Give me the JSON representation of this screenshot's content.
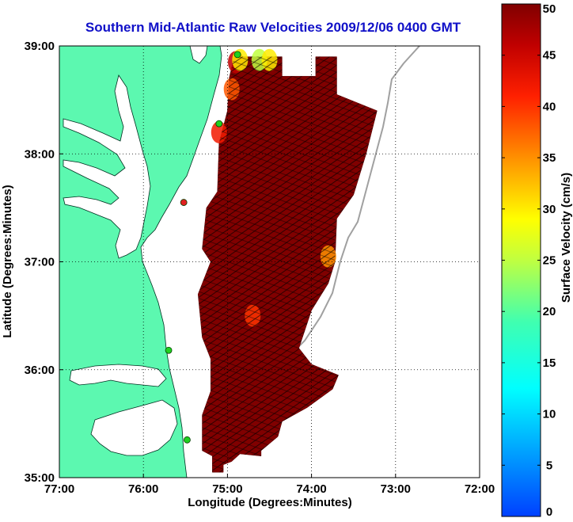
{
  "chart_data": {
    "type": "heatmap",
    "title": "Southern Mid-Atlantic Raw Velocities 2009/12/06 0400 GMT",
    "xlabel": "Longitude (Degrees:Minutes)",
    "ylabel": "Latitude (Degrees:Minutes)",
    "x_ticks": [
      {
        "value": -77,
        "label": "77:00"
      },
      {
        "value": -76,
        "label": "76:00"
      },
      {
        "value": -75,
        "label": "75:00"
      },
      {
        "value": -74,
        "label": "74:00"
      },
      {
        "value": -73,
        "label": "73:00"
      },
      {
        "value": -72,
        "label": "72:00"
      }
    ],
    "y_ticks": [
      {
        "value": 35,
        "label": "35:00"
      },
      {
        "value": 36,
        "label": "36:00"
      },
      {
        "value": 37,
        "label": "37:00"
      },
      {
        "value": 38,
        "label": "38:00"
      },
      {
        "value": 39,
        "label": "39:00"
      }
    ],
    "xlim": [
      -77,
      -72
    ],
    "ylim": [
      35,
      39
    ],
    "grid": true,
    "colorbar": {
      "label": "Surface Velocity (cm/s)",
      "range": [
        0,
        50
      ],
      "ticks": [
        0,
        5,
        10,
        15,
        20,
        25,
        30,
        35,
        40,
        45,
        50
      ],
      "tick_labels": [
        "0",
        "5",
        "10",
        "15",
        "20",
        "25",
        "30",
        "35",
        "40",
        "45",
        "50"
      ],
      "colormap": "jet"
    },
    "field_outline_lonlat": [
      [
        -74.92,
        38.9
      ],
      [
        -74.35,
        38.9
      ],
      [
        -74.35,
        38.72
      ],
      [
        -73.95,
        38.72
      ],
      [
        -73.95,
        38.9
      ],
      [
        -73.7,
        38.9
      ],
      [
        -73.7,
        38.55
      ],
      [
        -73.22,
        38.4
      ],
      [
        -73.35,
        38.0
      ],
      [
        -73.5,
        37.62
      ],
      [
        -73.7,
        37.4
      ],
      [
        -73.72,
        37.0
      ],
      [
        -73.8,
        36.8
      ],
      [
        -74.0,
        36.55
      ],
      [
        -74.15,
        36.2
      ],
      [
        -74.0,
        36.05
      ],
      [
        -73.68,
        35.95
      ],
      [
        -73.75,
        35.82
      ],
      [
        -74.05,
        35.65
      ],
      [
        -74.35,
        35.52
      ],
      [
        -74.4,
        35.38
      ],
      [
        -74.6,
        35.25
      ],
      [
        -74.6,
        35.2
      ],
      [
        -74.85,
        35.22
      ],
      [
        -74.95,
        35.15
      ],
      [
        -75.05,
        35.12
      ],
      [
        -75.05,
        35.05
      ],
      [
        -75.18,
        35.05
      ],
      [
        -75.18,
        35.2
      ],
      [
        -75.3,
        35.25
      ],
      [
        -75.3,
        35.58
      ],
      [
        -75.2,
        35.8
      ],
      [
        -75.2,
        36.1
      ],
      [
        -75.3,
        36.3
      ],
      [
        -75.35,
        36.7
      ],
      [
        -75.2,
        37.0
      ],
      [
        -75.3,
        37.12
      ],
      [
        -75.25,
        37.5
      ],
      [
        -75.12,
        37.65
      ],
      [
        -75.1,
        38.1
      ],
      [
        -75.0,
        38.4
      ],
      [
        -74.98,
        38.7
      ]
    ],
    "field_levels": [
      {
        "value": 46,
        "lonlat": [
          -74.9,
          38.85
        ]
      },
      {
        "value": 38,
        "lonlat": [
          -74.95,
          38.6
        ]
      },
      {
        "value": 30,
        "lonlat": [
          -74.85,
          38.87
        ]
      },
      {
        "value": 25,
        "lonlat": [
          -74.62,
          38.87
        ]
      },
      {
        "value": 30,
        "lonlat": [
          -74.5,
          38.87
        ]
      },
      {
        "value": 35,
        "lonlat": [
          -73.8,
          37.05
        ]
      },
      {
        "value": 40,
        "lonlat": [
          -74.7,
          36.5
        ]
      },
      {
        "value": 42,
        "lonlat": [
          -75.1,
          38.2
        ]
      }
    ],
    "field_predominant_value": 50,
    "station_markers": [
      {
        "lon": -74.88,
        "lat": 38.92,
        "color": "#20d020"
      },
      {
        "lon": -75.1,
        "lat": 38.28,
        "color": "#20d020"
      },
      {
        "lon": -75.52,
        "lat": 37.55,
        "color": "#e02020"
      },
      {
        "lon": -75.7,
        "lat": 36.18,
        "color": "#20d020"
      },
      {
        "lon": -75.48,
        "lat": 35.35,
        "color": "#20d020"
      }
    ]
  }
}
